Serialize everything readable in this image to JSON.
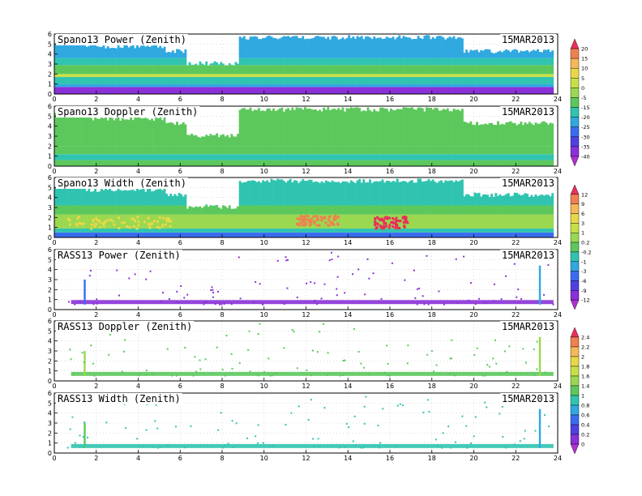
{
  "figure": {
    "date": "15MAR2013",
    "x_ticks": [
      "0",
      "2",
      "4",
      "6",
      "8",
      "10",
      "12",
      "14",
      "16",
      "18",
      "20",
      "22",
      "24"
    ],
    "y_ticks": [
      "0",
      "1",
      "2",
      "3",
      "4",
      "5",
      "6"
    ]
  },
  "colorbars": [
    {
      "labels": [
        "20",
        "15",
        "10",
        "5",
        "0",
        "-5",
        "-15",
        "-20",
        "-25",
        "-30",
        "-35",
        "-40"
      ],
      "colors": [
        "#e8305a",
        "#f08050",
        "#f5b85a",
        "#e8d848",
        "#c8e048",
        "#9ad850",
        "#5cc85c",
        "#30c4b0",
        "#30a8e0",
        "#3a6cf0",
        "#5040e0",
        "#8a30d8",
        "#b030d0"
      ]
    },
    {
      "labels": [
        "12",
        "9",
        "6",
        "3",
        "1",
        "0.2",
        "-0.2",
        "-1",
        "-3",
        "-6",
        "-9",
        "-12"
      ],
      "colors": [
        "#e8305a",
        "#f08050",
        "#f5b85a",
        "#e8d848",
        "#c8e048",
        "#9ad850",
        "#5cc85c",
        "#30c4b0",
        "#30a8e0",
        "#3a6cf0",
        "#5040e0",
        "#8a30d8",
        "#b030d0"
      ]
    },
    {
      "labels": [
        "2.4",
        "2.2",
        "2",
        "1.8",
        "1.6",
        "1.4",
        "1",
        "0.8",
        "0.6",
        "0.4",
        "0.2",
        "0"
      ],
      "colors": [
        "#e8305a",
        "#f08050",
        "#f5b85a",
        "#e8d848",
        "#c8e048",
        "#9ad850",
        "#5cc85c",
        "#30c4b0",
        "#30a8e0",
        "#3a6cf0",
        "#5040e0",
        "#8a30d8",
        "#b030d0"
      ]
    }
  ],
  "chart_data": [
    {
      "type": "heatmap",
      "title": "Spano13 Power (Zenith)",
      "date": "15MAR2013",
      "xlim": [
        0,
        24
      ],
      "ylim": [
        0,
        6
      ],
      "x_ticks": [
        0,
        2,
        4,
        6,
        8,
        10,
        12,
        14,
        16,
        18,
        20,
        22,
        24
      ],
      "y_ticks": [
        0,
        1,
        2,
        3,
        4,
        5,
        6
      ],
      "grid": true,
      "colorscale": "colorbar-1",
      "coverage": [
        {
          "x": [
            0,
            1.5
          ],
          "top": 5.5
        },
        {
          "x": [
            1.5,
            5.3
          ],
          "top": 5.0
        },
        {
          "x": [
            5.3,
            6.3
          ],
          "top": 4.5
        },
        {
          "x": [
            6.3,
            8.8
          ],
          "top": 3.3
        },
        {
          "x": [
            8.8,
            19.5
          ],
          "top": 5.9
        },
        {
          "x": [
            19.5,
            23.8
          ],
          "top": 4.5
        }
      ],
      "layers": [
        {
          "y": [
            0,
            0.7
          ],
          "color": "#8a30d8"
        },
        {
          "y": [
            0.7,
            1.0
          ],
          "color": "#30a8e0"
        },
        {
          "y": [
            1.0,
            1.7
          ],
          "color": "#30c4b0"
        },
        {
          "y": [
            1.7,
            2.0
          ],
          "color": "#c8e048"
        },
        {
          "y": [
            2.0,
            2.9
          ],
          "color": "#5cc85c"
        },
        {
          "y": [
            2.9,
            3.6
          ],
          "color": "#30c4b0"
        },
        {
          "y": [
            3.6,
            6.0
          ],
          "color": "#30a8e0"
        }
      ]
    },
    {
      "type": "heatmap",
      "title": "Spano13 Doppler (Zenith)",
      "date": "15MAR2013",
      "xlim": [
        0,
        24
      ],
      "ylim": [
        0,
        6
      ],
      "x_ticks": [
        0,
        2,
        4,
        6,
        8,
        10,
        12,
        14,
        16,
        18,
        20,
        22,
        24
      ],
      "y_ticks": [
        0,
        1,
        2,
        3,
        4,
        5,
        6
      ],
      "grid": true,
      "colorscale": "colorbar-1",
      "coverage": [
        {
          "x": [
            0,
            1.5
          ],
          "top": 5.5
        },
        {
          "x": [
            1.5,
            5.3
          ],
          "top": 5.0
        },
        {
          "x": [
            5.3,
            6.3
          ],
          "top": 4.5
        },
        {
          "x": [
            6.3,
            8.8
          ],
          "top": 3.3
        },
        {
          "x": [
            8.8,
            19.5
          ],
          "top": 5.9
        },
        {
          "x": [
            19.5,
            23.8
          ],
          "top": 4.5
        }
      ],
      "layers": [
        {
          "y": [
            0,
            0.6
          ],
          "color": "#5cc85c"
        },
        {
          "y": [
            0.6,
            1.2
          ],
          "color": "#30c4b0"
        },
        {
          "y": [
            1.2,
            2.0
          ],
          "color": "#5cc85c"
        },
        {
          "y": [
            2.0,
            6.0
          ],
          "color": "#5cc85c"
        }
      ]
    },
    {
      "type": "heatmap",
      "title": "Spano13 Width (Zenith)",
      "date": "15MAR2013",
      "xlim": [
        0,
        24
      ],
      "ylim": [
        0,
        6
      ],
      "x_ticks": [
        0,
        2,
        4,
        6,
        8,
        10,
        12,
        14,
        16,
        18,
        20,
        22,
        24
      ],
      "y_ticks": [
        0,
        1,
        2,
        3,
        4,
        5,
        6
      ],
      "grid": true,
      "colorscale": "colorbar-2",
      "coverage": [
        {
          "x": [
            0,
            1.5
          ],
          "top": 5.5
        },
        {
          "x": [
            1.5,
            5.3
          ],
          "top": 5.0
        },
        {
          "x": [
            5.3,
            6.3
          ],
          "top": 4.5
        },
        {
          "x": [
            6.3,
            8.8
          ],
          "top": 3.3
        },
        {
          "x": [
            8.8,
            19.5
          ],
          "top": 5.9
        },
        {
          "x": [
            19.5,
            23.8
          ],
          "top": 4.5
        }
      ],
      "layers": [
        {
          "y": [
            0,
            0.5
          ],
          "color": "#3a6cf0"
        },
        {
          "y": [
            0.5,
            0.9
          ],
          "color": "#30c4b0"
        },
        {
          "y": [
            0.9,
            2.3
          ],
          "color": "#9ad850"
        },
        {
          "y": [
            2.3,
            3.2
          ],
          "color": "#5cc85c"
        },
        {
          "y": [
            3.2,
            6.0
          ],
          "color": "#30c4b0"
        }
      ],
      "hot_spots": [
        {
          "x": [
            0.5,
            5.5
          ],
          "y": [
            1.0,
            2.2
          ],
          "color": "#e8d848"
        },
        {
          "x": [
            11.5,
            13.5
          ],
          "y": [
            1.3,
            2.3
          ],
          "color": "#f08050"
        },
        {
          "x": [
            15.2,
            16.8
          ],
          "y": [
            1.0,
            2.2
          ],
          "color": "#e8305a"
        }
      ]
    },
    {
      "type": "heatmap",
      "title": "RASS13 Power (Zenith)",
      "date": "15MAR2013",
      "xlim": [
        0,
        24
      ],
      "ylim": [
        0,
        6
      ],
      "x_ticks": [
        0,
        2,
        4,
        6,
        8,
        10,
        12,
        14,
        16,
        18,
        20,
        22,
        24
      ],
      "y_ticks": [
        0,
        1,
        2,
        3,
        4,
        5,
        6
      ],
      "grid": true,
      "colorscale": "colorbar-2",
      "band": {
        "x": [
          0.8,
          23.8
        ],
        "y": [
          0.55,
          0.95
        ],
        "color": "#8a30d8"
      },
      "spikes": [
        {
          "x": 1.45,
          "y": [
            0.5,
            3.0
          ],
          "color": "#3a6cf0"
        },
        {
          "x": 23.15,
          "y": [
            0.5,
            4.4
          ],
          "color": "#30a8e0"
        }
      ]
    },
    {
      "type": "heatmap",
      "title": "RASS13 Doppler (Zenith)",
      "date": "15MAR2013",
      "xlim": [
        0,
        24
      ],
      "ylim": [
        0,
        6
      ],
      "x_ticks": [
        0,
        2,
        4,
        6,
        8,
        10,
        12,
        14,
        16,
        18,
        20,
        22,
        24
      ],
      "y_ticks": [
        0,
        1,
        2,
        3,
        4,
        5,
        6
      ],
      "grid": true,
      "colorscale": "colorbar-3",
      "band": {
        "x": [
          0.8,
          23.8
        ],
        "y": [
          0.5,
          0.9
        ],
        "color": "#5cc85c"
      },
      "spikes": [
        {
          "x": 1.45,
          "y": [
            0.5,
            3.0
          ],
          "color": "#9ad850"
        },
        {
          "x": 23.15,
          "y": [
            0.5,
            4.4
          ],
          "color": "#9ad850"
        }
      ]
    },
    {
      "type": "heatmap",
      "title": "RASS13 Width (Zenith)",
      "date": "15MAR2013",
      "xlim": [
        0,
        24
      ],
      "ylim": [
        0,
        6
      ],
      "x_ticks": [
        0,
        2,
        4,
        6,
        8,
        10,
        12,
        14,
        16,
        18,
        20,
        22,
        24
      ],
      "y_ticks": [
        0,
        1,
        2,
        3,
        4,
        5,
        6
      ],
      "grid": true,
      "colorscale": "colorbar-3",
      "band": {
        "x": [
          0.8,
          23.8
        ],
        "y": [
          0.5,
          0.9
        ],
        "color": "#30c4b0"
      },
      "spikes": [
        {
          "x": 1.45,
          "y": [
            0.5,
            3.0
          ],
          "color": "#5cc85c"
        },
        {
          "x": 23.15,
          "y": [
            0.5,
            4.4
          ],
          "color": "#30a8e0"
        }
      ]
    }
  ]
}
